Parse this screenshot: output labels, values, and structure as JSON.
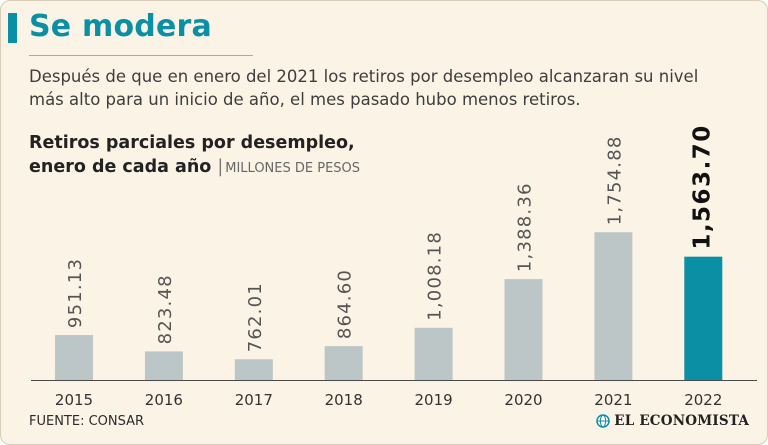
{
  "header": {
    "title": "Se modera",
    "subtitle_line1": "Después de que en enero del 2021 los retiros por desempleo alcanzaran su nivel",
    "subtitle_line2": "más alto para un inicio de año, el mes pasado hubo menos retiros."
  },
  "chart_title": {
    "line1": "Retiros parciales por desempleo,",
    "line2": "enero de cada año",
    "separator": "|",
    "unit": "MILLONES DE PESOS"
  },
  "chart_data": {
    "type": "bar",
    "categories": [
      "2015",
      "2016",
      "2017",
      "2018",
      "2019",
      "2020",
      "2021",
      "2022"
    ],
    "values": [
      951.13,
      823.48,
      762.01,
      864.6,
      1008.18,
      1388.36,
      1754.88,
      1563.7
    ],
    "value_labels": [
      "951.13",
      "823.48",
      "762.01",
      "864.60",
      "1,008.18",
      "1,388.36",
      "1,754.88",
      "1,563.70"
    ],
    "highlight_index": 7,
    "colors": {
      "bar": "#bcc6c6",
      "highlight": "#0b8fa4"
    },
    "baseline_value": 600,
    "axis_max": 1780
  },
  "footer": {
    "source": "FUENTE: CONSAR",
    "brand": "EL ECONOMISTA"
  },
  "brand_logo_icon": "globe-logo-icon"
}
